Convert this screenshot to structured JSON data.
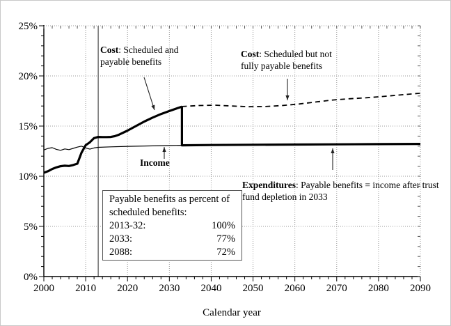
{
  "chart_data": {
    "type": "line",
    "title": "",
    "xlabel": "Calendar year",
    "ylabel": "",
    "x_range": [
      2000,
      2090
    ],
    "y_range": [
      0,
      25
    ],
    "x_ticks": [
      2000,
      2010,
      2020,
      2030,
      2040,
      2050,
      2060,
      2070,
      2080,
      2090
    ],
    "y_ticks": [
      [
        0,
        "0%"
      ],
      [
        5,
        "5%"
      ],
      [
        10,
        "10%"
      ],
      [
        15,
        "15%"
      ],
      [
        20,
        "20%"
      ],
      [
        25,
        "25%"
      ]
    ],
    "grid": "dotted gridlines at each 5% horizontal and each decade vertical",
    "legend_position": "none (inline annotations with arrows)",
    "vertical_marker_year": 2013,
    "series": [
      {
        "name": "income",
        "label": "Income",
        "style": "thin",
        "points": [
          [
            2000,
            12.62
          ],
          [
            2001,
            12.78
          ],
          [
            2002,
            12.85
          ],
          [
            2003,
            12.68
          ],
          [
            2004,
            12.58
          ],
          [
            2005,
            12.72
          ],
          [
            2006,
            12.65
          ],
          [
            2007,
            12.78
          ],
          [
            2008,
            12.9
          ],
          [
            2009,
            13.0
          ],
          [
            2010,
            12.82
          ],
          [
            2011,
            12.7
          ],
          [
            2012,
            12.82
          ],
          [
            2013,
            12.88
          ],
          [
            2016,
            12.93
          ],
          [
            2020,
            12.98
          ],
          [
            2025,
            13.02
          ],
          [
            2030,
            13.06
          ],
          [
            2033,
            13.08
          ],
          [
            2040,
            13.11
          ],
          [
            2050,
            13.14
          ],
          [
            2060,
            13.16
          ],
          [
            2070,
            13.18
          ],
          [
            2080,
            13.2
          ],
          [
            2090,
            13.22
          ]
        ]
      },
      {
        "name": "cost-scheduled-and-payable",
        "label": "Cost: Scheduled and payable benefits",
        "style": "thick",
        "points": [
          [
            2000,
            10.35
          ],
          [
            2001,
            10.5
          ],
          [
            2002,
            10.72
          ],
          [
            2003,
            10.88
          ],
          [
            2004,
            11.0
          ],
          [
            2005,
            11.05
          ],
          [
            2006,
            11.02
          ],
          [
            2007,
            11.12
          ],
          [
            2008,
            11.25
          ],
          [
            2009,
            12.35
          ],
          [
            2010,
            13.1
          ],
          [
            2011,
            13.38
          ],
          [
            2012,
            13.8
          ],
          [
            2013,
            13.92
          ],
          [
            2014,
            13.9
          ],
          [
            2015,
            13.9
          ],
          [
            2016,
            13.92
          ],
          [
            2017,
            14.0
          ],
          [
            2018,
            14.15
          ],
          [
            2020,
            14.55
          ],
          [
            2022,
            15.0
          ],
          [
            2024,
            15.45
          ],
          [
            2026,
            15.85
          ],
          [
            2028,
            16.2
          ],
          [
            2030,
            16.5
          ],
          [
            2032,
            16.8
          ],
          [
            2033,
            16.93
          ]
        ]
      },
      {
        "name": "cost-scheduled-not-fully-payable",
        "label": "Cost: Scheduled but not fully payable benefits",
        "style": "dashed",
        "points": [
          [
            2033,
            16.95
          ],
          [
            2037,
            17.05
          ],
          [
            2041,
            17.08
          ],
          [
            2045,
            17.0
          ],
          [
            2049,
            16.93
          ],
          [
            2053,
            16.95
          ],
          [
            2057,
            17.05
          ],
          [
            2061,
            17.2
          ],
          [
            2065,
            17.4
          ],
          [
            2069,
            17.6
          ],
          [
            2073,
            17.72
          ],
          [
            2077,
            17.82
          ],
          [
            2081,
            17.95
          ],
          [
            2085,
            18.1
          ],
          [
            2090,
            18.28
          ]
        ]
      },
      {
        "name": "expenditures-payable",
        "label": "Expenditures: Payable benefits = income after trust fund depletion in 2033",
        "style": "thick",
        "points": [
          [
            2033,
            16.93
          ],
          [
            2033,
            13.08
          ],
          [
            2040,
            13.11
          ],
          [
            2050,
            13.14
          ],
          [
            2060,
            13.16
          ],
          [
            2070,
            13.18
          ],
          [
            2080,
            13.2
          ],
          [
            2090,
            13.22
          ]
        ]
      }
    ]
  },
  "annotations": {
    "cost_payable": {
      "term": "Cost",
      "rest": ": Scheduled and payable benefits"
    },
    "cost_scheduled": {
      "term": "Cost",
      "rest": ": Scheduled but not fully payable benefits"
    },
    "income": {
      "label": "Income"
    },
    "expenditures": {
      "term": "Expenditures",
      "rest": ": Payable benefits = income after trust fund depletion in 2033"
    }
  },
  "payable_box": {
    "heading": "Payable benefits as percent of scheduled benefits:",
    "rows": [
      {
        "label": "2013-32:",
        "value": "100%"
      },
      {
        "label": "2033:",
        "value": "77%"
      },
      {
        "label": "2088:",
        "value": "72%"
      }
    ]
  },
  "axis": {
    "xlabel": "Calendar year"
  }
}
